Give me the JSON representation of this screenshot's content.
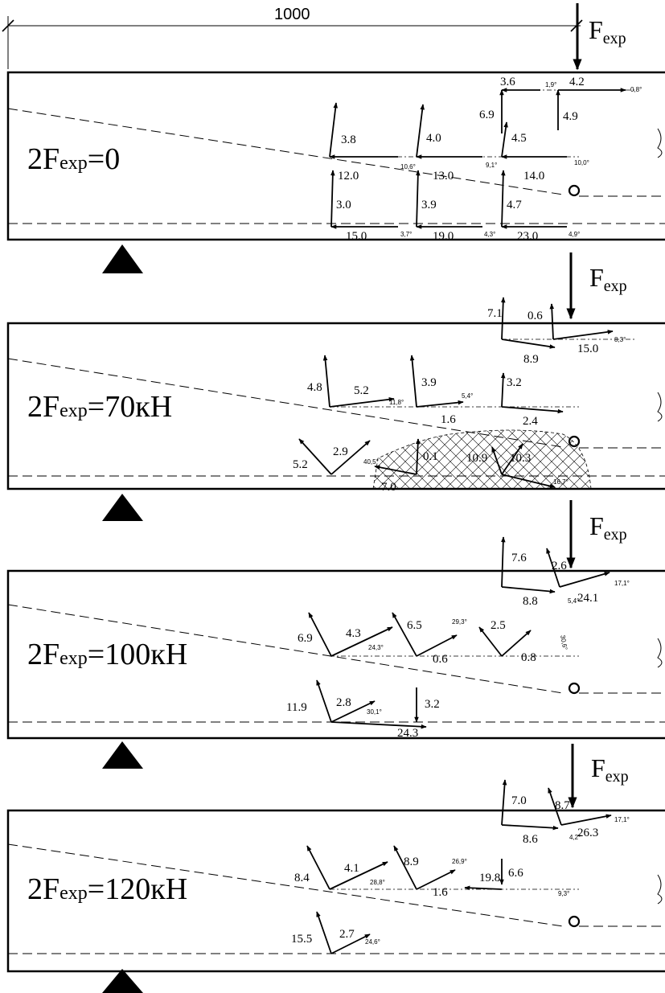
{
  "dimension": {
    "value": "1000"
  },
  "force_label": {
    "main": "F",
    "sub": "exp"
  },
  "panels": [
    {
      "load": {
        "prefix": "2F",
        "sub": "exp",
        "suffix": "=0"
      },
      "labels": [
        "3.6",
        "4.2",
        "6.9",
        "4.9",
        "3.8",
        "4.0",
        "4.5",
        "12.0",
        "13.0",
        "14.0",
        "3.0",
        "3.9",
        "4.7",
        "15.0",
        "19.0",
        "23.0"
      ],
      "angles": [
        "1,9°",
        "0,8°",
        "10,6°",
        "9,1°",
        "10,0°",
        "3,7°",
        "4,3°",
        "4,9°"
      ]
    },
    {
      "load": {
        "prefix": "2F",
        "sub": "exp",
        "suffix": "=70кН"
      },
      "labels": [
        "7.1",
        "0.6",
        "8.9",
        "15.0",
        "4.8",
        "5.2",
        "3.9",
        "3.2",
        "1.6",
        "2.4",
        "5.2",
        "2.9",
        "0.1",
        "10.9",
        "10.3",
        "7.0"
      ],
      "angles": [
        "8,3°",
        "11,8°",
        "5,4°",
        "40,5°",
        "16,7°"
      ]
    },
    {
      "load": {
        "prefix": "2F",
        "sub": "exp",
        "suffix": "=100кН"
      },
      "labels": [
        "7.6",
        "2.6",
        "8.8",
        "24.1",
        "6.9",
        "4.3",
        "6.5",
        "2.5",
        "0.6",
        "0.8",
        "11.9",
        "2.8",
        "3.2",
        "24.3"
      ],
      "angles": [
        "5,4°",
        "17,1°",
        "29,3°",
        "24,3°",
        "30,6°",
        "30,1°"
      ]
    },
    {
      "load": {
        "prefix": "2F",
        "sub": "exp",
        "suffix": "=120кН"
      },
      "labels": [
        "7.0",
        "8.7",
        "8.6",
        "26.3",
        "8.4",
        "4.1",
        "8.9",
        "6.6",
        "1.6",
        "19.8",
        "15.5",
        "2.7"
      ],
      "angles": [
        "4,2°",
        "17,1°",
        "28,8°",
        "26,9°",
        "9,3°",
        "24,6°"
      ]
    }
  ]
}
